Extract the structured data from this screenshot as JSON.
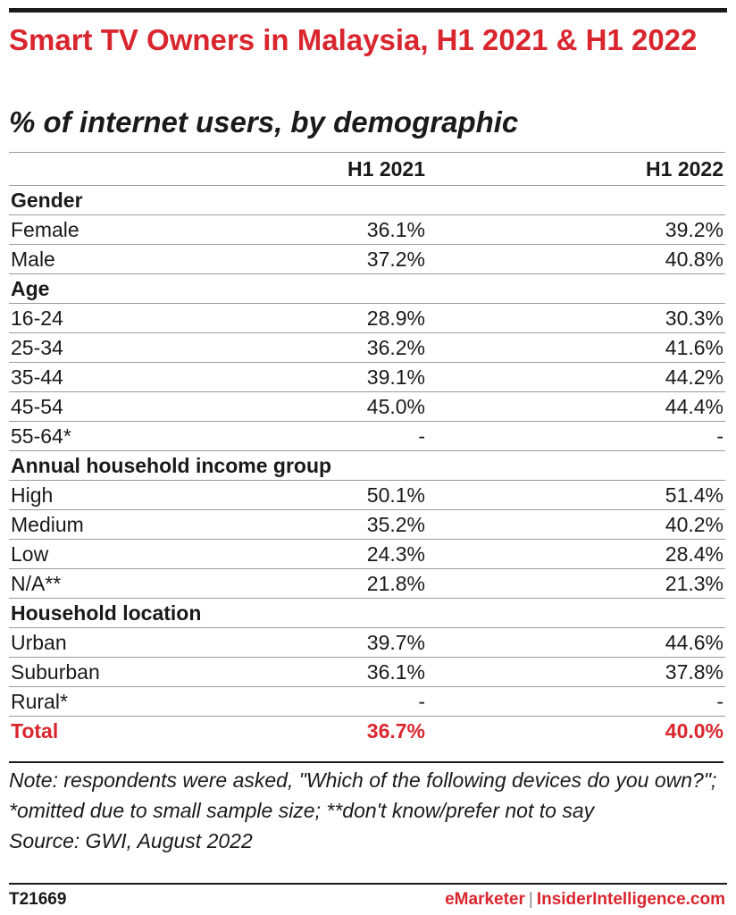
{
  "chart_data": {
    "type": "table",
    "title": "Smart TV Owners in Malaysia, H1 2021 & H1 2022",
    "subtitle": "% of internet users, by demographic",
    "columns": [
      "H1 2021",
      "H1 2022"
    ],
    "rows": [
      {
        "kind": "section",
        "label": "Gender"
      },
      {
        "kind": "data",
        "label": "Female",
        "values": [
          "36.1%",
          "39.2%"
        ]
      },
      {
        "kind": "data",
        "label": "Male",
        "values": [
          "37.2%",
          "40.8%"
        ]
      },
      {
        "kind": "section",
        "label": "Age"
      },
      {
        "kind": "data",
        "label": "16-24",
        "values": [
          "28.9%",
          "30.3%"
        ]
      },
      {
        "kind": "data",
        "label": "25-34",
        "values": [
          "36.2%",
          "41.6%"
        ]
      },
      {
        "kind": "data",
        "label": "35-44",
        "values": [
          "39.1%",
          "44.2%"
        ]
      },
      {
        "kind": "data",
        "label": "45-54",
        "values": [
          "45.0%",
          "44.4%"
        ]
      },
      {
        "kind": "data",
        "label": "55-64*",
        "values": [
          "-",
          "-"
        ]
      },
      {
        "kind": "section",
        "label": "Annual household income group"
      },
      {
        "kind": "data",
        "label": "High",
        "values": [
          "50.1%",
          "51.4%"
        ]
      },
      {
        "kind": "data",
        "label": "Medium",
        "values": [
          "35.2%",
          "40.2%"
        ]
      },
      {
        "kind": "data",
        "label": "Low",
        "values": [
          "24.3%",
          "28.4%"
        ]
      },
      {
        "kind": "data",
        "label": "N/A**",
        "values": [
          "21.8%",
          "21.3%"
        ]
      },
      {
        "kind": "section",
        "label": "Household location"
      },
      {
        "kind": "data",
        "label": "Urban",
        "values": [
          "39.7%",
          "44.6%"
        ]
      },
      {
        "kind": "data",
        "label": "Suburban",
        "values": [
          "36.1%",
          "37.8%"
        ]
      },
      {
        "kind": "data",
        "label": "Rural*",
        "values": [
          "-",
          "-"
        ]
      },
      {
        "kind": "total",
        "label": "Total",
        "values": [
          "36.7%",
          "40.0%"
        ]
      }
    ],
    "note": "Note: respondents were asked, \"Which of the following devices do you own?\"; *omitted due to small sample size; **don't know/prefer not to say",
    "source": "Source: GWI, August 2022"
  },
  "footer": {
    "chart_id": "T21669",
    "brand_left": "eMarketer",
    "separator": "|",
    "brand_right": "InsiderIntelligence.com"
  },
  "colors": {
    "accent": "#d9262e",
    "text": "#1a1a1a",
    "rule": "#9a9a9a"
  }
}
